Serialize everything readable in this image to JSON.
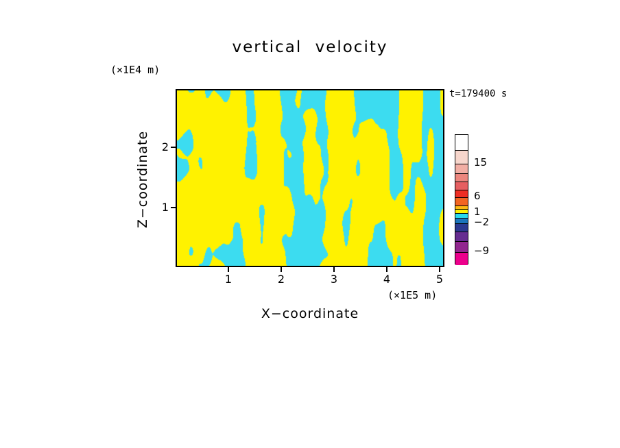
{
  "figure": {
    "background": "#ffffff"
  },
  "chart_data": {
    "type": "heatmap",
    "title": "vertical velocity",
    "time_label": "t=179400 s",
    "x_axis": {
      "label": "X−coordinate",
      "units": "(×1E5 m)",
      "ticks": [
        1,
        2,
        3,
        4,
        5
      ],
      "range": [
        0,
        5.1
      ]
    },
    "y_axis": {
      "label": "Z−coordinate",
      "units": "(×1E4 m)",
      "ticks": [
        1,
        2
      ],
      "range": [
        0,
        2.95
      ]
    },
    "field": {
      "description": "Two-level filled contour field of vertical velocity: yellow = values in band above 1, cyan = values in band below 1; interleaved blobs in the left/centre and vertical streaks toward the right",
      "positive_color": "#fff200",
      "negative_color": "#3cdcf0",
      "synthesis": {
        "seed": 7,
        "blob_fx": 6.5,
        "blob_fy": 3.2,
        "stripe_fx": 22,
        "stripe_fy": 2.6,
        "blend_base": 0.1,
        "blend_gain": 0.75,
        "threshold": 0.49
      }
    },
    "colorbar": {
      "levels_labeled": [
        15,
        6,
        1,
        -2,
        -9
      ],
      "segments": [
        {
          "color": "#ffffff",
          "h": 22
        },
        {
          "color": "#f7d6cc",
          "h": 20
        },
        {
          "color": "#f2aea4",
          "h": 14
        },
        {
          "color": "#ec867e",
          "h": 12
        },
        {
          "color": "#e65f61",
          "h": 12
        },
        {
          "color": "#ee2e24",
          "h": 11
        },
        {
          "color": "#f26522",
          "h": 12
        },
        {
          "color": "#fdb913",
          "h": 5
        },
        {
          "color": "#fff200",
          "h": 6
        },
        {
          "color": "#2ad9ec",
          "h": 7
        },
        {
          "color": "#1b75bc",
          "h": 8
        },
        {
          "color": "#2b3990",
          "h": 12
        },
        {
          "color": "#662d91",
          "h": 14
        },
        {
          "color": "#92278f",
          "h": 16
        },
        {
          "color": "#ec008c",
          "h": 19
        }
      ],
      "labels": [
        {
          "text": "15",
          "offset": 42
        },
        {
          "text": "6",
          "offset": 91
        },
        {
          "text": "1",
          "offset": 114
        },
        {
          "text": "−2",
          "offset": 129
        },
        {
          "text": "−9",
          "offset": 171
        }
      ]
    }
  }
}
